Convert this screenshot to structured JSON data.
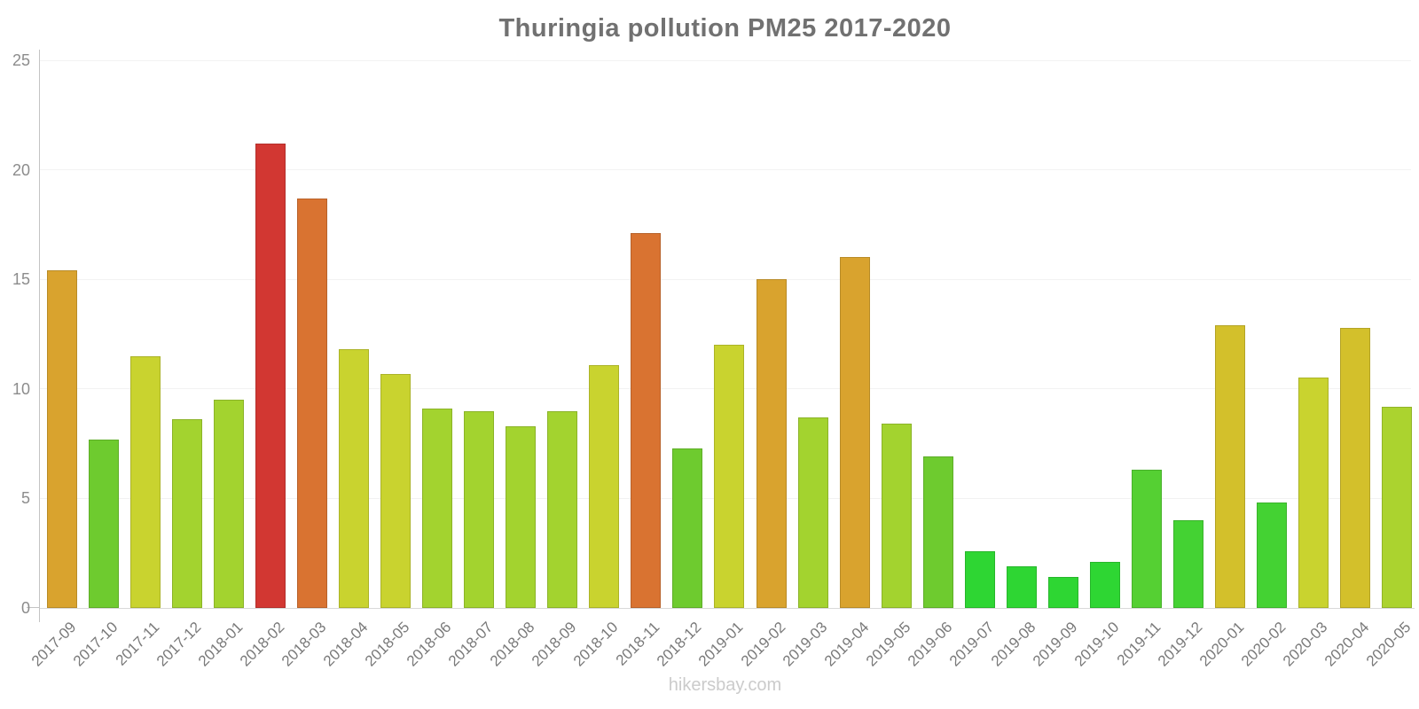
{
  "chart_data": {
    "type": "bar",
    "title": "Thuringia pollution PM25 2017-2020",
    "footer": "hikersbay.com",
    "xlabel": "",
    "ylabel": "",
    "ylim": [
      0,
      25
    ],
    "yticks": [
      0,
      5,
      10,
      15,
      20,
      25
    ],
    "grid": true,
    "legend": false,
    "categories": [
      "2017-09",
      "2017-10",
      "2017-11",
      "2017-12",
      "2018-01",
      "2018-02",
      "2018-03",
      "2018-04",
      "2018-05",
      "2018-06",
      "2018-07",
      "2018-08",
      "2018-09",
      "2018-10",
      "2018-11",
      "2018-12",
      "2019-01",
      "2019-02",
      "2019-03",
      "2019-04",
      "2019-05",
      "2019-06",
      "2019-07",
      "2019-08",
      "2019-09",
      "2019-10",
      "2019-11",
      "2019-12",
      "2020-01",
      "2020-02",
      "2020-03",
      "2020-04",
      "2020-05"
    ],
    "values": [
      15.4,
      7.7,
      11.5,
      8.6,
      9.5,
      21.2,
      18.7,
      11.8,
      10.7,
      9.1,
      9.0,
      8.3,
      9.0,
      11.1,
      17.1,
      7.3,
      12.0,
      15.0,
      8.7,
      16.0,
      8.4,
      6.9,
      2.6,
      1.9,
      1.4,
      2.1,
      6.3,
      4.0,
      12.9,
      4.8,
      10.5,
      12.8,
      9.2
    ],
    "bar_colors": [
      "#d9a32e",
      "#6ecb2f",
      "#c9d32f",
      "#a3d32f",
      "#a3d32f",
      "#d23732",
      "#d97331",
      "#c9d32f",
      "#c9d32f",
      "#a3d32f",
      "#a3d32f",
      "#a3d32f",
      "#a3d32f",
      "#c9d32f",
      "#d97331",
      "#6ecb2f",
      "#c9d32f",
      "#d9a32e",
      "#a3d32f",
      "#d9a32e",
      "#a3d32f",
      "#6ecb2f",
      "#2ed633",
      "#2ed633",
      "#2ed633",
      "#2ed633",
      "#55d033",
      "#44d233",
      "#d3c02b",
      "#44d233",
      "#c9d32f",
      "#d3c02b",
      "#abd32f"
    ],
    "layout_colors": {
      "title": "#717171",
      "axis_line": "#c4c4c4",
      "baseline": "#d9d9d9",
      "gridline": "#f2f2f2",
      "tick_labels": "#8c8c8c",
      "x_labels": "#7a7a7a",
      "watermark": "#cbcbcb"
    }
  }
}
